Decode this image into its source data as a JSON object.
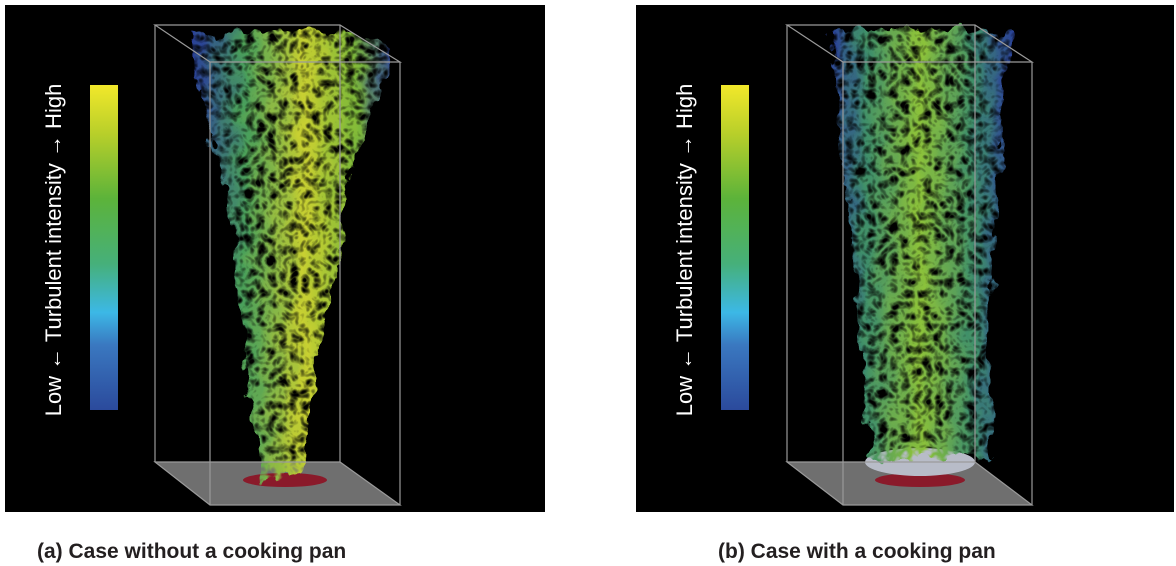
{
  "panels": [
    {
      "colorbar_label": "Low ← Turbulent intensity → High",
      "caption": "(a) Case without a cooking pan"
    },
    {
      "colorbar_label": "Low ← Turbulent intensity → High",
      "caption": "(b) Case with a cooking pan"
    }
  ]
}
